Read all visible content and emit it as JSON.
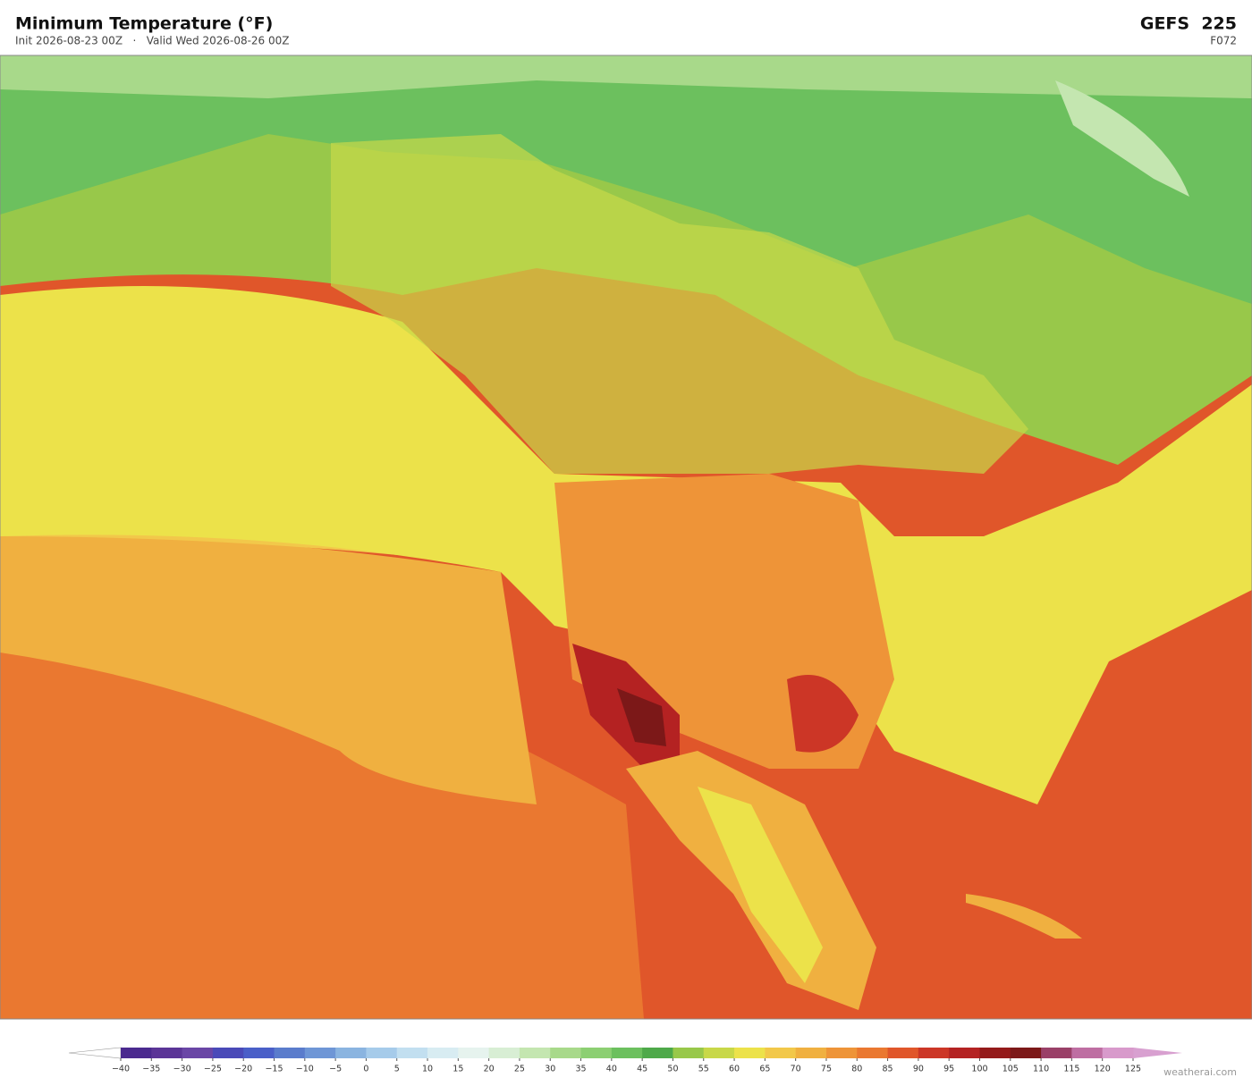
{
  "header": {
    "title": "Minimum Temperature  (°F)",
    "subtitle": "Init 2026-08-23 00Z   ·   Valid Wed 2026-08-26 00Z",
    "model": "GEFS  225",
    "forecast_hour": "F072"
  },
  "colorbar": {
    "ticks": [
      "−40",
      "−35",
      "−30",
      "−25",
      "−20",
      "−15",
      "−10",
      "−5",
      "0",
      "5",
      "10",
      "15",
      "20",
      "25",
      "30",
      "35",
      "40",
      "45",
      "50",
      "55",
      "60",
      "65",
      "70",
      "75",
      "80",
      "85",
      "90",
      "95",
      "100",
      "105",
      "110",
      "115",
      "120",
      "125"
    ],
    "colors": [
      "#4b2a8f",
      "#5b3597",
      "#6a46a6",
      "#4a4ab8",
      "#4a5fc8",
      "#5a7ccc",
      "#6e96d6",
      "#8ab4e0",
      "#a6cbea",
      "#c2dff0",
      "#d8ecf2",
      "#e6f3ee",
      "#d8eed4",
      "#c4e6b0",
      "#a8d98a",
      "#8ccf72",
      "#6cc05e",
      "#4ea94a",
      "#98c84a",
      "#c8d848",
      "#ece24a",
      "#f2c84a",
      "#f0b040",
      "#ee9438",
      "#ea7830",
      "#e0562a",
      "#cc3626",
      "#b42222",
      "#941a1a",
      "#7c1818",
      "#9a4068",
      "#be6ea2",
      "#d89acb"
    ],
    "low_color": "#ffffff",
    "high_color": "#d8a0d0"
  },
  "footer": {
    "credit": "weatherai.com"
  }
}
